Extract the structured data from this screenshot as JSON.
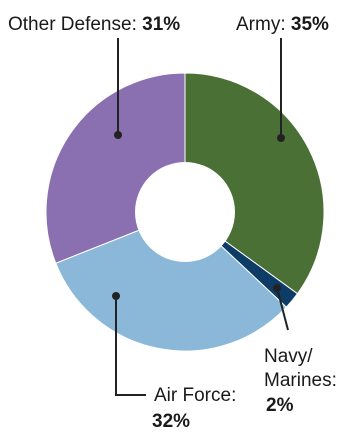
{
  "chart_data": {
    "type": "pie",
    "donut": true,
    "slices": [
      {
        "key": "army",
        "label": "Army:",
        "value": 35,
        "display": "35%",
        "color": "#4a7035"
      },
      {
        "key": "navy",
        "label": "Navy/ Marines:",
        "label_lines": [
          "Navy/",
          "Marines:"
        ],
        "value": 2,
        "display": "2%",
        "color": "#0d3d66"
      },
      {
        "key": "air_force",
        "label": "Air Force:",
        "value": 32,
        "display": "32%",
        "color": "#8bb8d8"
      },
      {
        "key": "other_defense",
        "label": "Other Defense:",
        "value": 31,
        "display": "31%",
        "color": "#8a70b0"
      }
    ],
    "start_angle_deg": 0,
    "direction": "clockwise"
  }
}
